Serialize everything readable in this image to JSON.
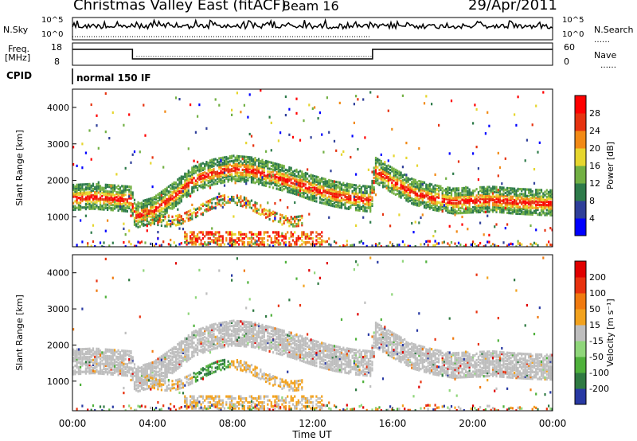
{
  "header": {
    "site": "Christmas Valley East (fitACF)",
    "beam": "Beam 16",
    "date": "29/Apr/2011"
  },
  "strip": {
    "nsky_label": "N.Sky",
    "nsearch_label": "N.Search",
    "freq_label_1": "Freq.",
    "freq_label_2": "[MHz]",
    "nave_label": "Nave",
    "cpid_label": "CPID",
    "cpid_value": "normal 150 IF",
    "noise_ticks_left": [
      "10^5",
      "10^0"
    ],
    "noise_ticks_right": [
      "10^5",
      "10^0"
    ],
    "freq_ticks_left": [
      "18",
      "8"
    ],
    "freq_ticks_right": [
      "60",
      "0"
    ]
  },
  "chart_data": [
    {
      "type": "heatmap",
      "name": "power-panel",
      "ylabel": "Slant Range [km]",
      "x_range_hours": [
        0,
        24
      ],
      "y_range_km": [
        180,
        4500
      ],
      "y_ticks": [
        "1000",
        "2000",
        "3000",
        "4000"
      ],
      "colorbar": {
        "label": "Power [dB]",
        "ticks": [
          "4",
          "8",
          "12",
          "16",
          "20",
          "24",
          "28"
        ],
        "colors": [
          "#0000ff",
          "#2f3f9a",
          "#2e7b4a",
          "#72b043",
          "#e6d62e",
          "#f28a16",
          "#e63310",
          "#ff0000"
        ]
      },
      "bands": [
        {
          "h": 0,
          "r": 1550
        },
        {
          "h": 1,
          "r": 1580
        },
        {
          "h": 2,
          "r": 1540
        },
        {
          "h": 2.9,
          "r": 1500
        },
        {
          "h": 3.1,
          "r": 1050
        },
        {
          "h": 4,
          "r": 1200
        },
        {
          "h": 5,
          "r": 1600
        },
        {
          "h": 6,
          "r": 2050
        },
        {
          "h": 7,
          "r": 2250
        },
        {
          "h": 8,
          "r": 2350
        },
        {
          "h": 9,
          "r": 2300
        },
        {
          "h": 10,
          "r": 2150
        },
        {
          "h": 11,
          "r": 2000
        },
        {
          "h": 12,
          "r": 1800
        },
        {
          "h": 13,
          "r": 1650
        },
        {
          "h": 14,
          "r": 1550
        },
        {
          "h": 14.9,
          "r": 1500
        },
        {
          "h": 15.1,
          "r": 2300
        },
        {
          "h": 16,
          "r": 2000
        },
        {
          "h": 17,
          "r": 1700
        },
        {
          "h": 18,
          "r": 1550
        },
        {
          "h": 19,
          "r": 1450
        },
        {
          "h": 20,
          "r": 1480
        },
        {
          "h": 21,
          "r": 1500
        },
        {
          "h": 22,
          "r": 1450
        },
        {
          "h": 23,
          "r": 1420
        },
        {
          "h": 24,
          "r": 1400
        }
      ]
    },
    {
      "type": "heatmap",
      "name": "velocity-panel",
      "ylabel": "Slant Range [km]",
      "xlabel": "Time UT",
      "x_ticks": [
        "00:00",
        "04:00",
        "08:00",
        "12:00",
        "16:00",
        "20:00",
        "00:00"
      ],
      "y_ticks": [
        "1000",
        "2000",
        "3000",
        "4000"
      ],
      "colorbar": {
        "label": "Velocity [m s⁻¹]",
        "ticks": [
          "200",
          "100",
          "50",
          "15",
          "-15",
          "-50",
          "-100",
          "-200"
        ],
        "colors": [
          "#2839a3",
          "#2f7a42",
          "#4fb13b",
          "#8fd67a",
          "#bebebe",
          "#f2a21e",
          "#f07a10",
          "#e8320f",
          "#e00000"
        ]
      }
    }
  ]
}
